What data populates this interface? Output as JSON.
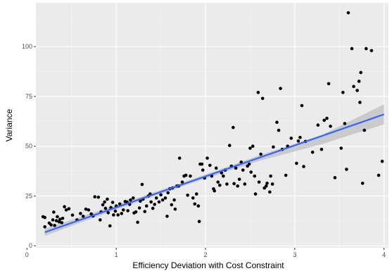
{
  "chart_data": {
    "type": "scatter",
    "xlabel": "Efficiency Deviation with Cost Constraint",
    "ylabel": "Variance",
    "xlim": [
      0.1,
      4.05
    ],
    "ylim": [
      -1,
      122
    ],
    "x_ticks": [
      0,
      1,
      2,
      3,
      4
    ],
    "y_ticks": [
      0,
      25,
      50,
      75,
      100
    ],
    "grid": true,
    "legend": "none",
    "colors": {
      "panel": "#ebebeb",
      "grid_major": "#ffffff",
      "grid_minor": "#f5f5f5",
      "points": "#000000",
      "smooth_line": "#3366ff",
      "ribbon": "#999999"
    },
    "smooth": {
      "method": "linear",
      "x": [
        0.2,
        4.0
      ],
      "y": [
        6.8,
        66.0
      ],
      "se_band": [
        [
          0.2,
          5.0,
          8.6
        ],
        [
          1.0,
          18.2,
          20.4
        ],
        [
          1.8,
          30.8,
          32.6
        ],
        [
          2.6,
          42.6,
          45.4
        ],
        [
          3.3,
          51.0,
          55.6
        ],
        [
          4.0,
          61.0,
          71.0
        ]
      ]
    },
    "points": [
      [
        0.18,
        14.6
      ],
      [
        0.2,
        14.2
      ],
      [
        0.2,
        9.5
      ],
      [
        0.25,
        11.4
      ],
      [
        0.27,
        10.5
      ],
      [
        0.29,
        13.0
      ],
      [
        0.3,
        16.9
      ],
      [
        0.31,
        10.2
      ],
      [
        0.33,
        12.6
      ],
      [
        0.34,
        14.6
      ],
      [
        0.36,
        12.0
      ],
      [
        0.37,
        13.3
      ],
      [
        0.39,
        11.6
      ],
      [
        0.4,
        13.8
      ],
      [
        0.42,
        19.6
      ],
      [
        0.44,
        18.0
      ],
      [
        0.47,
        18.6
      ],
      [
        0.51,
        15.4
      ],
      [
        0.56,
        13.0
      ],
      [
        0.6,
        16.2
      ],
      [
        0.63,
        14.8
      ],
      [
        0.66,
        18.4
      ],
      [
        0.69,
        18.0
      ],
      [
        0.72,
        16.0
      ],
      [
        0.74,
        15.0
      ],
      [
        0.76,
        24.6
      ],
      [
        0.8,
        24.4
      ],
      [
        0.82,
        13.0
      ],
      [
        0.83,
        17.0
      ],
      [
        0.85,
        20.6
      ],
      [
        0.87,
        22.0
      ],
      [
        0.88,
        18.8
      ],
      [
        0.9,
        23.4
      ],
      [
        0.91,
        16.6
      ],
      [
        0.93,
        10.0
      ],
      [
        0.94,
        19.2
      ],
      [
        0.96,
        21.8
      ],
      [
        0.97,
        15.5
      ],
      [
        0.99,
        17.4
      ],
      [
        1.0,
        20.0
      ],
      [
        1.02,
        15.5
      ],
      [
        1.04,
        21.0
      ],
      [
        1.06,
        16.2
      ],
      [
        1.08,
        18.0
      ],
      [
        1.1,
        22.2
      ],
      [
        1.12,
        22.0
      ],
      [
        1.13,
        17.6
      ],
      [
        1.15,
        20.8
      ],
      [
        1.16,
        23.0
      ],
      [
        1.19,
        24.0
      ],
      [
        1.2,
        16.5
      ],
      [
        1.22,
        17.0
      ],
      [
        1.24,
        11.8
      ],
      [
        1.26,
        19.0
      ],
      [
        1.27,
        22.4
      ],
      [
        1.29,
        30.8
      ],
      [
        1.3,
        23.4
      ],
      [
        1.32,
        17.2
      ],
      [
        1.34,
        20.0
      ],
      [
        1.36,
        25.0
      ],
      [
        1.38,
        26.0
      ],
      [
        1.39,
        22.0
      ],
      [
        1.41,
        18.8
      ],
      [
        1.43,
        20.8
      ],
      [
        1.45,
        24.0
      ],
      [
        1.48,
        22.0
      ],
      [
        1.5,
        25.6
      ],
      [
        1.52,
        23.0
      ],
      [
        1.55,
        24.0
      ],
      [
        1.57,
        14.8
      ],
      [
        1.58,
        26.6
      ],
      [
        1.6,
        28.6
      ],
      [
        1.62,
        20.6
      ],
      [
        1.63,
        29.0
      ],
      [
        1.65,
        23.0
      ],
      [
        1.66,
        18.4
      ],
      [
        1.68,
        30.0
      ],
      [
        1.7,
        30.0
      ],
      [
        1.71,
        44.0
      ],
      [
        1.74,
        32.0
      ],
      [
        1.76,
        35.0
      ],
      [
        1.78,
        35.4
      ],
      [
        1.8,
        25.4
      ],
      [
        1.83,
        35.0
      ],
      [
        1.86,
        24.0
      ],
      [
        1.88,
        21.0
      ],
      [
        1.9,
        26.0
      ],
      [
        1.92,
        20.0
      ],
      [
        1.93,
        12.2
      ],
      [
        1.94,
        41.0
      ],
      [
        1.96,
        41.0
      ],
      [
        1.97,
        38.0
      ],
      [
        1.99,
        34.0
      ],
      [
        2.02,
        44.0
      ],
      [
        2.05,
        40.4
      ],
      [
        2.07,
        35.0
      ],
      [
        2.09,
        28.6
      ],
      [
        2.1,
        27.6
      ],
      [
        2.12,
        39.0
      ],
      [
        2.14,
        32.0
      ],
      [
        2.16,
        30.4
      ],
      [
        2.18,
        36.6
      ],
      [
        2.2,
        35.0
      ],
      [
        2.22,
        38.0
      ],
      [
        2.24,
        31.0
      ],
      [
        2.27,
        50.4
      ],
      [
        2.29,
        40.0
      ],
      [
        2.31,
        59.4
      ],
      [
        2.32,
        31.2
      ],
      [
        2.34,
        39.0
      ],
      [
        2.36,
        30.0
      ],
      [
        2.38,
        33.4
      ],
      [
        2.4,
        42.0
      ],
      [
        2.42,
        38.0
      ],
      [
        2.44,
        31.0
      ],
      [
        2.47,
        40.0
      ],
      [
        2.49,
        41.0
      ],
      [
        2.5,
        49.0
      ],
      [
        2.51,
        37.0
      ],
      [
        2.53,
        50.0
      ],
      [
        2.55,
        35.0
      ],
      [
        2.56,
        26.0
      ],
      [
        2.59,
        77.0
      ],
      [
        2.6,
        32.0
      ],
      [
        2.62,
        46.0
      ],
      [
        2.64,
        74.0
      ],
      [
        2.66,
        29.0
      ],
      [
        2.68,
        30.0
      ],
      [
        2.69,
        31.4
      ],
      [
        2.72,
        27.0
      ],
      [
        2.73,
        35.0
      ],
      [
        2.75,
        31.0
      ],
      [
        2.76,
        49.6
      ],
      [
        2.8,
        62.0
      ],
      [
        2.82,
        58.0
      ],
      [
        2.84,
        79.0
      ],
      [
        2.86,
        48.4
      ],
      [
        2.9,
        35.4
      ],
      [
        2.92,
        50.0
      ],
      [
        2.96,
        54.0
      ],
      [
        3.02,
        41.4
      ],
      [
        3.04,
        52.6
      ],
      [
        3.06,
        54.4
      ],
      [
        3.08,
        70.4
      ],
      [
        3.1,
        39.8
      ],
      [
        3.12,
        52.4
      ],
      [
        3.2,
        47.0
      ],
      [
        3.26,
        60.6
      ],
      [
        3.3,
        48.4
      ],
      [
        3.33,
        63.0
      ],
      [
        3.36,
        64.0
      ],
      [
        3.38,
        81.4
      ],
      [
        3.4,
        60.0
      ],
      [
        3.45,
        34.2
      ],
      [
        3.52,
        49.0
      ],
      [
        3.54,
        77.0
      ],
      [
        3.56,
        61.4
      ],
      [
        3.58,
        38.4
      ],
      [
        3.6,
        117.0
      ],
      [
        3.64,
        99.0
      ],
      [
        3.66,
        80.0
      ],
      [
        3.7,
        78.0
      ],
      [
        3.72,
        82.6
      ],
      [
        3.73,
        72.0
      ],
      [
        3.74,
        87.0
      ],
      [
        3.76,
        31.4
      ],
      [
        3.78,
        58.0
      ],
      [
        3.8,
        99.0
      ],
      [
        3.86,
        98.0
      ],
      [
        3.94,
        35.4
      ],
      [
        3.98,
        42.4
      ]
    ]
  }
}
